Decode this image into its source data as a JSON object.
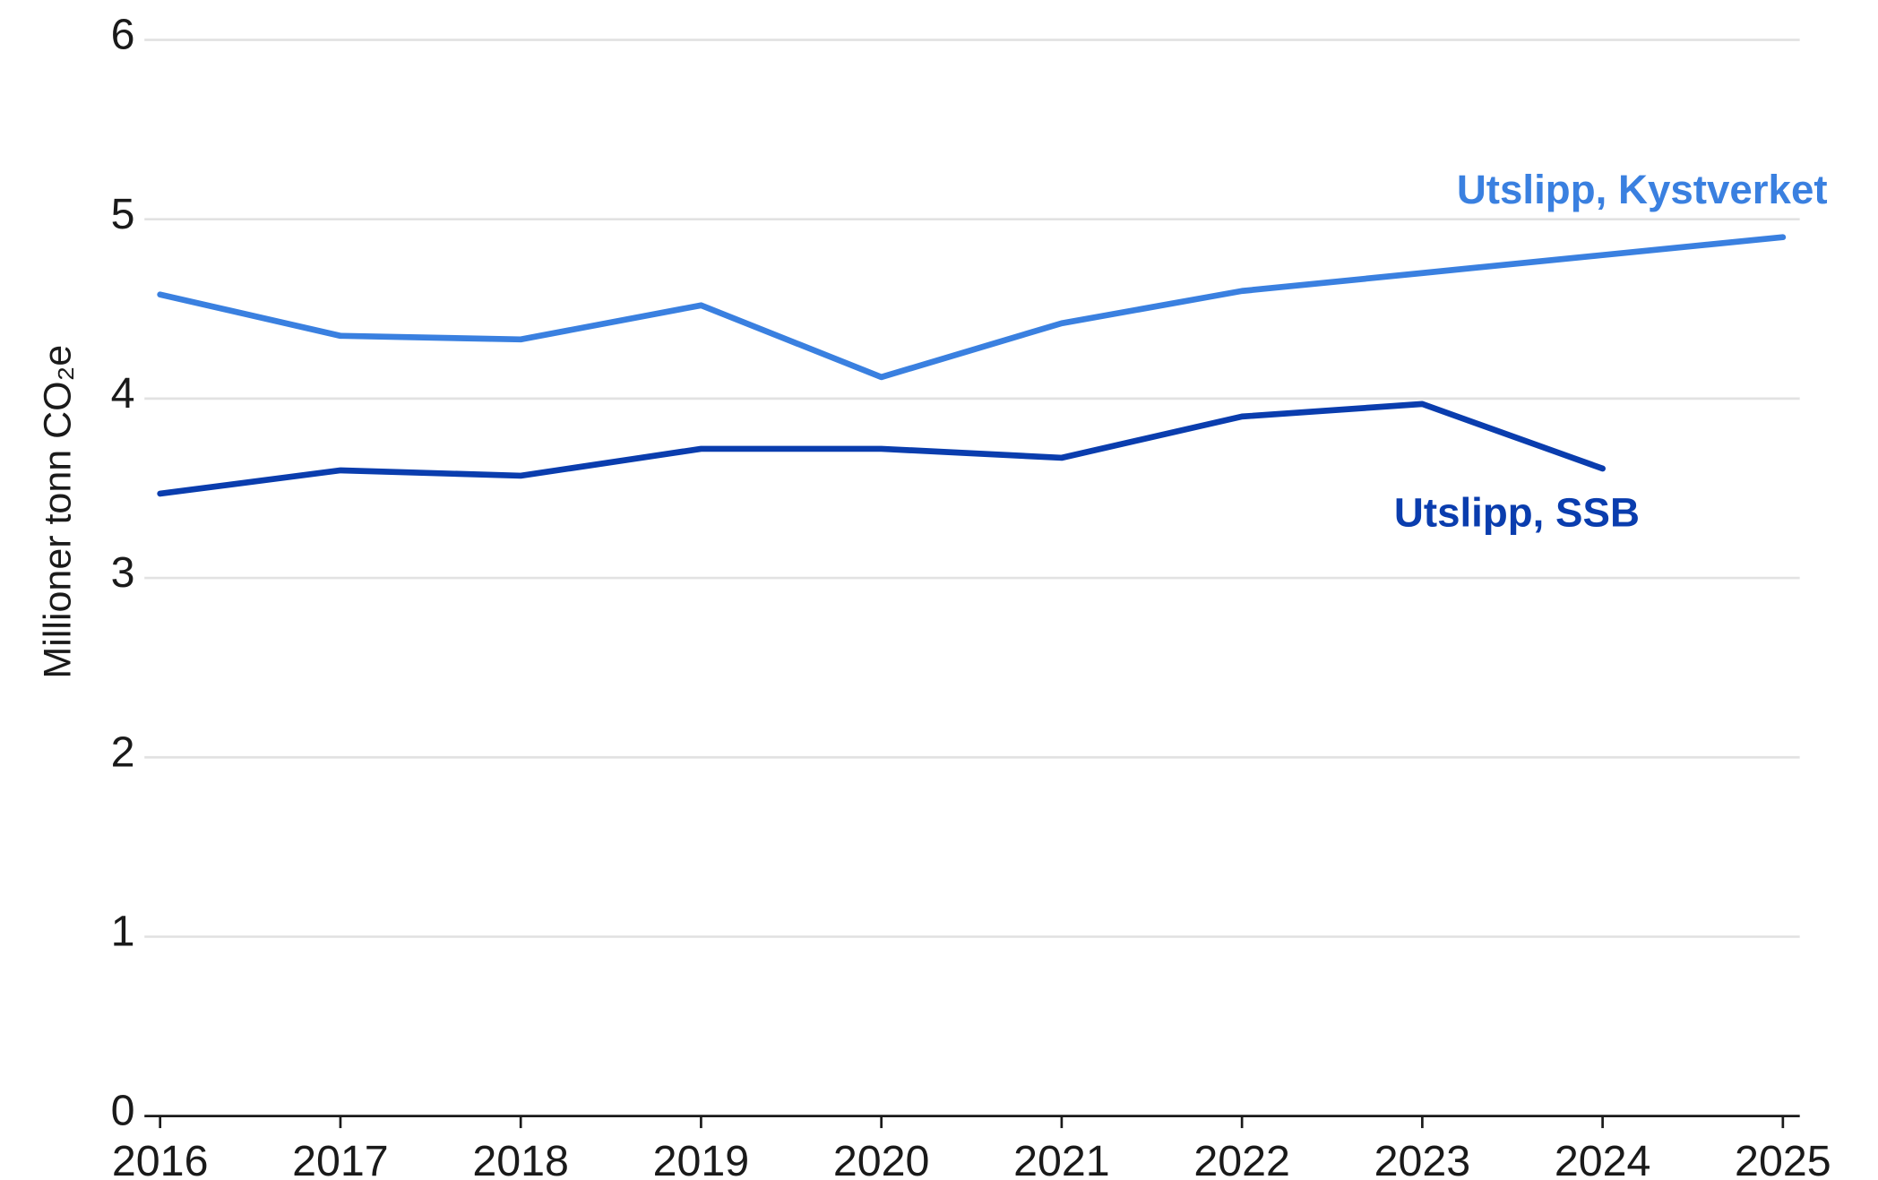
{
  "chart_data": {
    "type": "line",
    "y_label": "Millioner tonn CO₂e",
    "x": [
      2016,
      2017,
      2018,
      2019,
      2020,
      2021,
      2022,
      2023,
      2024,
      2025
    ],
    "series": [
      {
        "name": "Utslipp, Kystverket",
        "color": "#3a80e0",
        "values": [
          4.58,
          4.35,
          4.33,
          4.52,
          4.12,
          4.42,
          4.6,
          4.7,
          4.8,
          4.9
        ]
      },
      {
        "name": "Utslipp, SSB",
        "color": "#0a3dae",
        "values": [
          3.47,
          3.6,
          3.57,
          3.72,
          3.72,
          3.67,
          3.9,
          3.97,
          3.61,
          null
        ]
      }
    ],
    "xlim": [
      2016,
      2025
    ],
    "xticks": [
      2016,
      2017,
      2018,
      2019,
      2020,
      2021,
      2022,
      2023,
      2024,
      2025
    ],
    "ylim": [
      0,
      6
    ],
    "yticks": [
      0,
      1,
      2,
      3,
      4,
      5,
      6
    ],
    "grid": true
  }
}
